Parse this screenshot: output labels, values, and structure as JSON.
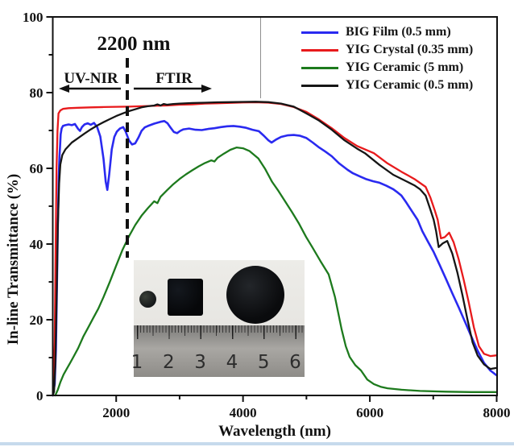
{
  "figure": {
    "ylabel": "In-line Transmittance (%)",
    "xlabel": "Wavelength (nm)"
  },
  "annotations": {
    "cutoff_label": "2200 nm",
    "cutoff_nm": 2200,
    "left_region_label": "UV-NIR",
    "right_region_label": "FTIR"
  },
  "axes": {
    "x": {
      "range": [
        1000,
        8000
      ],
      "major_ticks": [
        2000,
        4000,
        6000,
        8000
      ],
      "minor_ticks": [
        3000,
        5000,
        7000
      ]
    },
    "y": {
      "range": [
        0,
        100
      ],
      "major_ticks": [
        0,
        20,
        40,
        60,
        80,
        100
      ],
      "minor_ticks": [
        10,
        30,
        50,
        70,
        90
      ]
    }
  },
  "inset": {
    "ruler_numbers": [
      "1",
      "2",
      "3",
      "4",
      "5",
      "6"
    ],
    "samples": [
      "small-disc",
      "square-film",
      "large-disc"
    ]
  },
  "chart_data": {
    "type": "line",
    "title": "",
    "xlabel": "Wavelength (nm)",
    "ylabel": "In-line Transmittance (%)",
    "xlim": [
      1000,
      8000
    ],
    "ylim": [
      0,
      100
    ],
    "grid": false,
    "legend_position": "upper right",
    "series": [
      {
        "name": "BIG Film (0.5 mm)",
        "color": "#2a2af0",
        "points": [
          [
            1000,
            0
          ],
          [
            1030,
            3
          ],
          [
            1050,
            12
          ],
          [
            1065,
            28
          ],
          [
            1080,
            45
          ],
          [
            1095,
            58
          ],
          [
            1105,
            63
          ],
          [
            1115,
            66
          ],
          [
            1125,
            69
          ],
          [
            1140,
            70.5
          ],
          [
            1160,
            71.2
          ],
          [
            1200,
            71.4
          ],
          [
            1250,
            71.6
          ],
          [
            1300,
            71.4
          ],
          [
            1350,
            71.7
          ],
          [
            1400,
            70.4
          ],
          [
            1430,
            69.9
          ],
          [
            1460,
            70.9
          ],
          [
            1500,
            71.6
          ],
          [
            1550,
            71.9
          ],
          [
            1600,
            71.5
          ],
          [
            1650,
            72.0
          ],
          [
            1700,
            70.9
          ],
          [
            1750,
            68.4
          ],
          [
            1800,
            62.5
          ],
          [
            1835,
            56.5
          ],
          [
            1860,
            54.3
          ],
          [
            1890,
            58.5
          ],
          [
            1930,
            65.0
          ],
          [
            1970,
            68.3
          ],
          [
            2010,
            69.7
          ],
          [
            2060,
            70.5
          ],
          [
            2110,
            70.9
          ],
          [
            2150,
            69.7
          ],
          [
            2200,
            67.4
          ],
          [
            2250,
            66.3
          ],
          [
            2300,
            66.6
          ],
          [
            2350,
            68.1
          ],
          [
            2400,
            69.9
          ],
          [
            2450,
            70.8
          ],
          [
            2500,
            71.2
          ],
          [
            2600,
            71.8
          ],
          [
            2700,
            72.3
          ],
          [
            2760,
            72.5
          ],
          [
            2810,
            71.9
          ],
          [
            2860,
            70.7
          ],
          [
            2910,
            69.6
          ],
          [
            2960,
            69.3
          ],
          [
            3010,
            69.9
          ],
          [
            3060,
            70.3
          ],
          [
            3150,
            70.5
          ],
          [
            3250,
            70.2
          ],
          [
            3350,
            70.1
          ],
          [
            3450,
            70.4
          ],
          [
            3550,
            70.6
          ],
          [
            3650,
            70.9
          ],
          [
            3750,
            71.1
          ],
          [
            3850,
            71.2
          ],
          [
            3950,
            71.0
          ],
          [
            4050,
            70.7
          ],
          [
            4150,
            70.2
          ],
          [
            4250,
            69.8
          ],
          [
            4330,
            68.6
          ],
          [
            4400,
            67.4
          ],
          [
            4450,
            66.8
          ],
          [
            4520,
            67.6
          ],
          [
            4600,
            68.3
          ],
          [
            4700,
            68.7
          ],
          [
            4800,
            68.8
          ],
          [
            4900,
            68.6
          ],
          [
            5000,
            68.0
          ],
          [
            5100,
            66.8
          ],
          [
            5200,
            65.5
          ],
          [
            5300,
            64.4
          ],
          [
            5400,
            63.2
          ],
          [
            5516,
            61.3
          ],
          [
            5650,
            59.6
          ],
          [
            5732,
            58.7
          ],
          [
            5850,
            57.8
          ],
          [
            5936,
            57.2
          ],
          [
            6050,
            56.6
          ],
          [
            6153,
            56.2
          ],
          [
            6260,
            55.4
          ],
          [
            6369,
            54.5
          ],
          [
            6440,
            53.6
          ],
          [
            6497,
            52.8
          ],
          [
            6573,
            51.0
          ],
          [
            6662,
            48.7
          ],
          [
            6752,
            46.4
          ],
          [
            6828,
            43.4
          ],
          [
            6917,
            40.6
          ],
          [
            7006,
            37.9
          ],
          [
            7100,
            34.5
          ],
          [
            7200,
            30.8
          ],
          [
            7300,
            27.0
          ],
          [
            7400,
            23.3
          ],
          [
            7500,
            19.5
          ],
          [
            7600,
            15.6
          ],
          [
            7700,
            11.8
          ],
          [
            7800,
            8.6
          ],
          [
            7900,
            6.6
          ],
          [
            8000,
            5.3
          ]
        ]
      },
      {
        "name": "YIG Crystal (0.35 mm)",
        "color": "#e81a1c",
        "points": [
          [
            1000,
            0
          ],
          [
            1015,
            3
          ],
          [
            1030,
            14
          ],
          [
            1045,
            38
          ],
          [
            1060,
            60
          ],
          [
            1075,
            70
          ],
          [
            1090,
            74.5
          ],
          [
            1120,
            75.3
          ],
          [
            1160,
            75.7
          ],
          [
            1250,
            75.9
          ],
          [
            1400,
            76.0
          ],
          [
            1600,
            76.1
          ],
          [
            1800,
            76.2
          ],
          [
            2000,
            76.25
          ],
          [
            2200,
            76.3
          ],
          [
            2400,
            76.4
          ],
          [
            2600,
            76.5
          ],
          [
            2800,
            76.6
          ],
          [
            3000,
            76.8
          ],
          [
            3200,
            76.9
          ],
          [
            3400,
            77.1
          ],
          [
            3600,
            77.2
          ],
          [
            3800,
            77.3
          ],
          [
            4000,
            77.4
          ],
          [
            4200,
            77.45
          ],
          [
            4400,
            77.35
          ],
          [
            4600,
            77.0
          ],
          [
            4800,
            76.2
          ],
          [
            5000,
            74.9
          ],
          [
            5200,
            72.9
          ],
          [
            5400,
            70.6
          ],
          [
            5600,
            68.0
          ],
          [
            5800,
            65.9
          ],
          [
            6064,
            64.0
          ],
          [
            6280,
            61.3
          ],
          [
            6497,
            59.1
          ],
          [
            6701,
            57.2
          ],
          [
            6879,
            55.1
          ],
          [
            6955,
            52.3
          ],
          [
            7019,
            49.1
          ],
          [
            7070,
            46.4
          ],
          [
            7121,
            41.5
          ],
          [
            7180,
            41.8
          ],
          [
            7250,
            43.0
          ],
          [
            7320,
            40.5
          ],
          [
            7400,
            36.0
          ],
          [
            7480,
            30.5
          ],
          [
            7560,
            24.5
          ],
          [
            7640,
            18.0
          ],
          [
            7720,
            13.0
          ],
          [
            7800,
            11.0
          ],
          [
            7900,
            10.4
          ],
          [
            8000,
            10.6
          ]
        ]
      },
      {
        "name": "YIG Ceramic (5 mm)",
        "color": "#1d7a1d",
        "points": [
          [
            1040,
            0
          ],
          [
            1080,
            1.5
          ],
          [
            1120,
            3.5
          ],
          [
            1170,
            5.5
          ],
          [
            1220,
            7.0
          ],
          [
            1270,
            8.5
          ],
          [
            1320,
            10.0
          ],
          [
            1400,
            12.5
          ],
          [
            1480,
            15.5
          ],
          [
            1560,
            18.0
          ],
          [
            1640,
            20.5
          ],
          [
            1720,
            23.0
          ],
          [
            1800,
            26.0
          ],
          [
            1900,
            30.0
          ],
          [
            2000,
            34.3
          ],
          [
            2100,
            38.5
          ],
          [
            2200,
            42.0
          ],
          [
            2300,
            45.0
          ],
          [
            2400,
            47.5
          ],
          [
            2500,
            49.5
          ],
          [
            2600,
            51.3
          ],
          [
            2650,
            50.8
          ],
          [
            2700,
            52.5
          ],
          [
            2800,
            54.2
          ],
          [
            2900,
            55.8
          ],
          [
            3000,
            57.2
          ],
          [
            3100,
            58.4
          ],
          [
            3200,
            59.5
          ],
          [
            3300,
            60.5
          ],
          [
            3400,
            61.4
          ],
          [
            3500,
            62.1
          ],
          [
            3550,
            61.8
          ],
          [
            3600,
            62.8
          ],
          [
            3700,
            63.9
          ],
          [
            3800,
            64.9
          ],
          [
            3900,
            65.5
          ],
          [
            4000,
            65.3
          ],
          [
            4100,
            64.6
          ],
          [
            4242,
            62.6
          ],
          [
            4350,
            59.8
          ],
          [
            4459,
            56.4
          ],
          [
            4560,
            54.0
          ],
          [
            4662,
            51.3
          ],
          [
            4770,
            48.5
          ],
          [
            4879,
            45.5
          ],
          [
            4990,
            42.0
          ],
          [
            5095,
            39.1
          ],
          [
            5220,
            35.5
          ],
          [
            5350,
            32.0
          ],
          [
            5450,
            26.0
          ],
          [
            5554,
            17.5
          ],
          [
            5620,
            13.0
          ],
          [
            5682,
            10.2
          ],
          [
            5770,
            8.0
          ],
          [
            5860,
            6.6
          ],
          [
            5960,
            4.2
          ],
          [
            6064,
            3.0
          ],
          [
            6170,
            2.3
          ],
          [
            6280,
            1.9
          ],
          [
            6500,
            1.5
          ],
          [
            6790,
            1.2
          ],
          [
            7200,
            1.0
          ],
          [
            7600,
            0.9
          ],
          [
            8000,
            0.9
          ]
        ]
      },
      {
        "name": "YIG Ceramic (0.5 mm)",
        "color": "#161616",
        "points": [
          [
            1000,
            0
          ],
          [
            1020,
            1
          ],
          [
            1040,
            8
          ],
          [
            1060,
            25
          ],
          [
            1080,
            45
          ],
          [
            1100,
            56
          ],
          [
            1120,
            61
          ],
          [
            1150,
            63.5
          ],
          [
            1200,
            65.0
          ],
          [
            1300,
            66.8
          ],
          [
            1400,
            68.0
          ],
          [
            1500,
            69.2
          ],
          [
            1600,
            70.3
          ],
          [
            1700,
            71.3
          ],
          [
            1800,
            72.2
          ],
          [
            1900,
            73.0
          ],
          [
            2000,
            73.8
          ],
          [
            2100,
            74.5
          ],
          [
            2200,
            75.1
          ],
          [
            2300,
            75.6
          ],
          [
            2400,
            76.1
          ],
          [
            2500,
            76.4
          ],
          [
            2600,
            76.6
          ],
          [
            2650,
            76.9
          ],
          [
            2700,
            76.6
          ],
          [
            2750,
            77.0
          ],
          [
            2800,
            76.8
          ],
          [
            2900,
            77.0
          ],
          [
            3000,
            77.1
          ],
          [
            3200,
            77.25
          ],
          [
            3400,
            77.35
          ],
          [
            3600,
            77.45
          ],
          [
            3800,
            77.5
          ],
          [
            4000,
            77.55
          ],
          [
            4200,
            77.6
          ],
          [
            4400,
            77.5
          ],
          [
            4600,
            77.1
          ],
          [
            4800,
            76.3
          ],
          [
            5000,
            74.5
          ],
          [
            5200,
            72.6
          ],
          [
            5400,
            70.2
          ],
          [
            5600,
            67.4
          ],
          [
            5800,
            65.2
          ],
          [
            5923,
            64.0
          ],
          [
            6153,
            60.9
          ],
          [
            6369,
            58.3
          ],
          [
            6573,
            56.6
          ],
          [
            6701,
            55.5
          ],
          [
            6790,
            54.5
          ],
          [
            6879,
            52.8
          ],
          [
            6955,
            49.1
          ],
          [
            7006,
            46.4
          ],
          [
            7045,
            43.4
          ],
          [
            7085,
            39.2
          ],
          [
            7150,
            40.2
          ],
          [
            7220,
            40.8
          ],
          [
            7300,
            37.5
          ],
          [
            7380,
            32.5
          ],
          [
            7460,
            26.5
          ],
          [
            7540,
            20.0
          ],
          [
            7620,
            14.0
          ],
          [
            7700,
            10.5
          ],
          [
            7800,
            8.2
          ],
          [
            7900,
            7.0
          ],
          [
            8000,
            7.3
          ]
        ]
      }
    ]
  }
}
